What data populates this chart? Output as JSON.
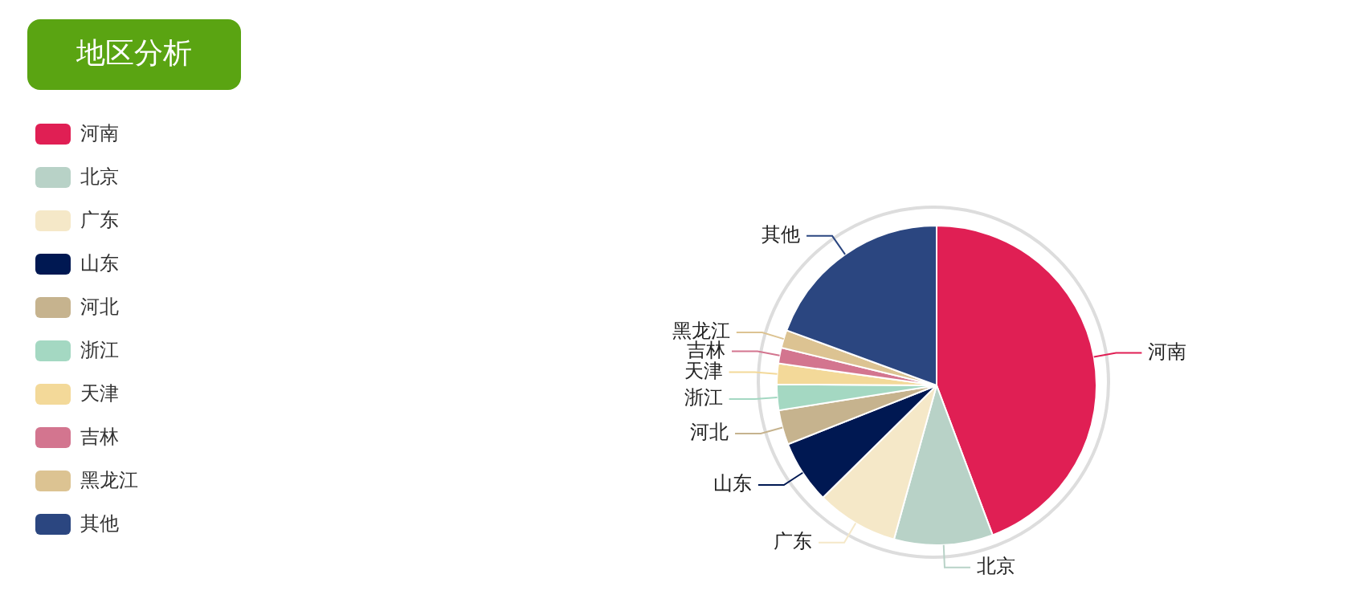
{
  "chart_data": {
    "type": "pie",
    "title": "地区分析",
    "categories": [
      "河南",
      "北京",
      "广东",
      "山东",
      "河北",
      "浙江",
      "天津",
      "吉林",
      "黑龙江",
      "其他"
    ],
    "values": [
      44.3,
      10,
      8.3,
      6.4,
      3.5,
      2.6,
      2.1,
      1.6,
      1.8,
      19.4
    ],
    "colors": [
      "#e01f54",
      "#b8d2c7",
      "#f5e8c8",
      "#001852",
      "#c6b38e",
      "#a4d8c2",
      "#f3d999",
      "#d3758f",
      "#dcc392",
      "#2b4680"
    ],
    "legend": "left"
  }
}
